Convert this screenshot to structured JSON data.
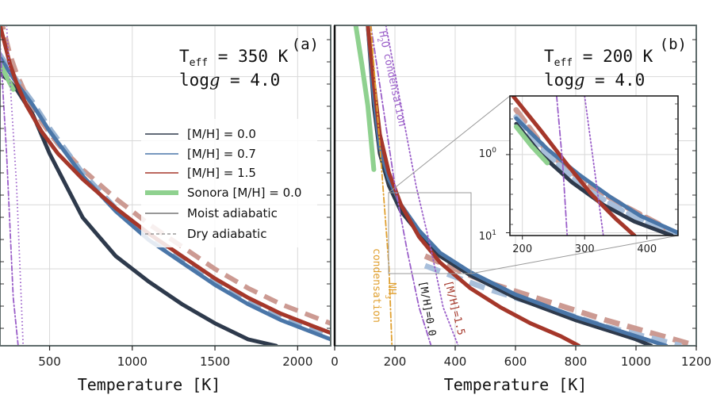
{
  "colors": {
    "mh00": "#2e3a4c",
    "mh07": "#4a76a8",
    "mh15": "#a5372a",
    "sonora": "#8fd18f",
    "h2o": "#9a5ec9",
    "nh3": "#e0a030",
    "grid": "#d8d8d8",
    "frame": "#5f6b6b"
  },
  "chart_data": [
    {
      "panel": "a",
      "type": "line",
      "panel_label": "(a)",
      "teff_label": "T",
      "teff_sub": "eff",
      "teff_value": " = 350 K",
      "logg_prefix": "log",
      "logg_g": "g",
      "logg_value": " = 4.0",
      "xlabel": "Temperature [K]",
      "xlim": [
        200,
        2200
      ],
      "xticks": [
        500,
        1000,
        1500,
        2000
      ],
      "legend": {
        "placement": "center-right",
        "entries": [
          "[M/H] = 0.0",
          "[M/H] = 0.7",
          "[M/H] = 1.5",
          "Sonora [M/H] = 0.0",
          "Moist adiabatic",
          "Dry adiabatic"
        ]
      },
      "series": [
        {
          "name": "[M/H] = 0.0",
          "x": [
            200,
            250,
            300,
            400,
            500,
            700,
            900,
            1100,
            1300,
            1500,
            1700,
            1870
          ],
          "y": [
            0.15,
            0.17,
            0.2,
            0.28,
            0.4,
            0.6,
            0.72,
            0.8,
            0.87,
            0.93,
            0.98,
            1.0
          ]
        },
        {
          "name": "[M/H] = 0.7",
          "x": [
            200,
            250,
            300,
            400,
            500,
            700,
            900,
            1100,
            1300,
            1500,
            1700,
            1900,
            2100,
            2200
          ],
          "y": [
            0.1,
            0.14,
            0.18,
            0.25,
            0.33,
            0.47,
            0.58,
            0.67,
            0.74,
            0.81,
            0.87,
            0.92,
            0.96,
            0.98
          ]
        },
        {
          "name": "[M/H] = 1.5",
          "x": [
            200,
            230,
            260,
            300,
            360,
            450,
            550,
            700,
            900,
            1100,
            1300,
            1500,
            1700,
            1900,
            2100,
            2200
          ],
          "y": [
            0.0,
            0.06,
            0.12,
            0.18,
            0.25,
            0.33,
            0.4,
            0.48,
            0.57,
            0.65,
            0.72,
            0.79,
            0.85,
            0.9,
            0.94,
            0.96
          ]
        },
        {
          "name": "Sonora [M/H] = 0.0",
          "x": [
            200,
            240,
            280
          ],
          "y": [
            0.12,
            0.16,
            0.2
          ]
        },
        {
          "name": "H2O condensation",
          "x": [
            200,
            240,
            280,
            310
          ],
          "y": [
            0.05,
            0.4,
            0.85,
            1.0
          ]
        }
      ]
    },
    {
      "panel": "b",
      "type": "line",
      "panel_label": "(b)",
      "teff_label": "T",
      "teff_sub": "eff",
      "teff_value": " = 200 K",
      "logg_prefix": "log",
      "logg_g": "g",
      "logg_value": " = 4.0",
      "xlabel": "Temperature [K]",
      "xlim": [
        0,
        1200
      ],
      "xticks": [
        0,
        200,
        400,
        600,
        800,
        1000,
        1200
      ],
      "h2o_label": "H",
      "h2o_sub": "2",
      "h2o_rest": "O condensation",
      "nh3_label": "NH",
      "nh3_sub": "3",
      "nh3_line2": "condensation",
      "mh00_annot": "[M/H]=0.0",
      "mh15_annot": "[M/H]=1.5",
      "series": [
        {
          "name": "[M/H] = 0.0",
          "x": [
            110,
            130,
            150,
            180,
            220,
            280,
            350,
            450,
            600,
            800,
            1000,
            1050
          ],
          "y": [
            0.0,
            0.25,
            0.4,
            0.5,
            0.58,
            0.65,
            0.72,
            0.78,
            0.85,
            0.92,
            0.98,
            1.0
          ]
        },
        {
          "name": "[M/H] = 0.7",
          "x": [
            110,
            130,
            150,
            180,
            220,
            280,
            350,
            450,
            600,
            800,
            1000,
            1100
          ],
          "y": [
            0.0,
            0.22,
            0.38,
            0.48,
            0.56,
            0.64,
            0.71,
            0.77,
            0.84,
            0.91,
            0.97,
            1.0
          ]
        },
        {
          "name": "[M/H] = 1.5",
          "x": [
            110,
            130,
            150,
            180,
            220,
            280,
            350,
            450,
            550,
            650,
            750,
            810
          ],
          "y": [
            0.0,
            0.18,
            0.34,
            0.46,
            0.56,
            0.66,
            0.74,
            0.82,
            0.88,
            0.93,
            0.97,
            1.0
          ]
        },
        {
          "name": "Sonora [M/H] = 0.0",
          "x": [
            70,
            90,
            110,
            120,
            130
          ],
          "y": [
            0.0,
            0.12,
            0.25,
            0.35,
            0.45
          ]
        },
        {
          "name": "H2O condensation (solar)",
          "x": [
            120,
            160,
            200,
            240,
            280,
            320
          ],
          "y": [
            0.0,
            0.25,
            0.5,
            0.7,
            0.88,
            1.0
          ]
        },
        {
          "name": "H2O condensation (enriched)",
          "x": [
            170,
            220,
            270,
            320,
            360,
            410
          ],
          "y": [
            0.0,
            0.25,
            0.5,
            0.7,
            0.88,
            1.0
          ]
        },
        {
          "name": "NH3 condensation",
          "x": [
            120,
            140,
            160,
            180,
            190
          ],
          "y": [
            0.0,
            0.25,
            0.5,
            0.75,
            1.0
          ]
        }
      ],
      "inset": {
        "xlim": [
          180,
          450
        ],
        "xticks": [
          200,
          300,
          400
        ],
        "ytick_labels": [
          "10",
          "10"
        ],
        "ytick_exp": [
          "0",
          "1"
        ]
      }
    }
  ]
}
